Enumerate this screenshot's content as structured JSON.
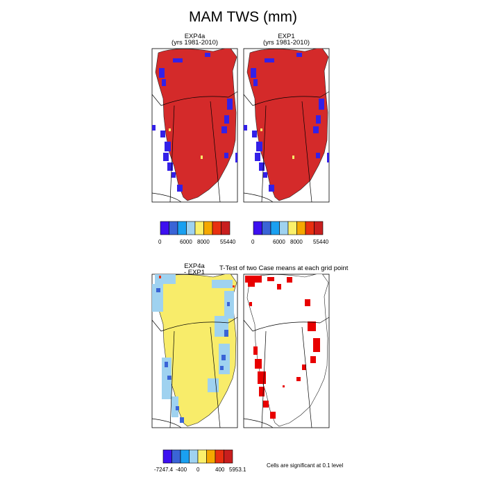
{
  "title": "MAM TWS (mm)",
  "panels": {
    "exp4a": {
      "line1": "EXP4a",
      "line2": "(yrs 1981-2010)"
    },
    "exp1": {
      "line1": "EXP1",
      "line2": "(yrs 1981-2010)"
    },
    "diff": {
      "line1": "EXP4a",
      "line2": "- EXP1"
    },
    "ttest": {
      "title": "T-Test of two Case means at each grid point",
      "note": "Cells are significant at 0.1 level"
    }
  },
  "colorbar_top": {
    "colors": [
      "#3d10f0",
      "#3a64d6",
      "#1aa0f0",
      "#9fd2f0",
      "#fbf06a",
      "#f5a800",
      "#e83010",
      "#c81e1e"
    ],
    "tick_labels": [
      "0",
      "6000",
      "8000",
      "55440"
    ]
  },
  "colorbar_diff": {
    "colors": [
      "#3d10f0",
      "#3a64d6",
      "#1aa0f0",
      "#9fd2f0",
      "#fbf06a",
      "#f5a800",
      "#e83010",
      "#c81e1e"
    ],
    "tick_labels": [
      "-7247.4",
      "-400",
      "0",
      "400",
      "5953.1"
    ]
  },
  "colors": {
    "fill_red": "#d42a2a",
    "fill_yellow": "#f8ec6a",
    "edge_blue": "#3320e8",
    "mid_blue": "#3a64d6",
    "light_blue": "#9fd2f0",
    "sig_red": "#e80000"
  }
}
